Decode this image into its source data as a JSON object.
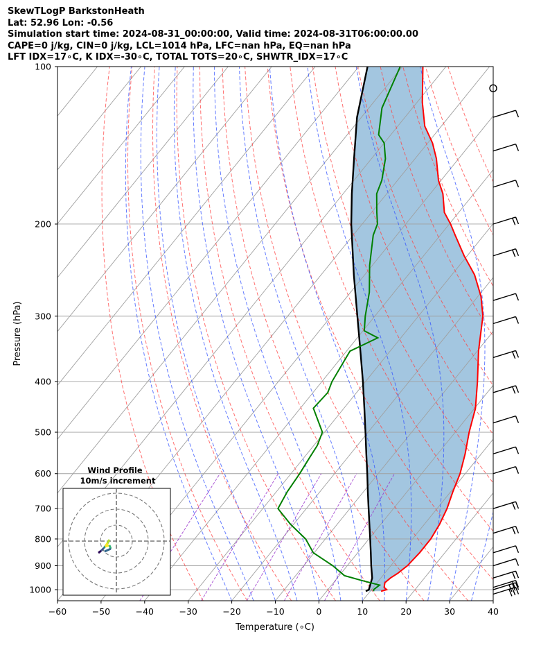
{
  "header": {
    "title": "SkewTLogP BarkstonHeath",
    "latlon": "Lat: 52.96   Lon: -0.56",
    "times": "Simulation start time: 2024-08-31_00:00:00, Valid time: 2024-08-31T06:00:00.00",
    "cape": "CAPE=0 j/kg, CIN=0 j/kg, LCL=1014 hPa, LFC=nan hPa, EQ=nan hPa",
    "indices": "LFT IDX=17∘C, K IDX=-30∘C, TOTAL TOTS=20∘C, SHWTR_IDX=17∘C"
  },
  "colors": {
    "temperature": "#ff0000",
    "dewpoint": "#008000",
    "parcel": "#000000",
    "cape_fill": "#a3c6e0",
    "dry_adiabat": "#ff4040",
    "moist_adiabat": "#3050ff",
    "mixing_ratio": "#9932cc",
    "isotherm": "#a0a0a0"
  },
  "chart_data": {
    "type": "skew-t",
    "xlabel": "Temperature (∘C)",
    "ylabel": "Pressure (hPa)",
    "xlim": [
      -60,
      40
    ],
    "ylim": [
      1050,
      100
    ],
    "x_ticks": [
      "−60",
      "−50",
      "−40",
      "−30",
      "−20",
      "−10",
      "0",
      "10",
      "20",
      "30",
      "40"
    ],
    "y_ticks": [
      "100",
      "200",
      "300",
      "400",
      "500",
      "600",
      "700",
      "800",
      "900",
      "1000"
    ],
    "grid": true,
    "series": [
      {
        "name": "temperature",
        "points": [
          [
            1007,
            12.5
          ],
          [
            1000,
            13.5
          ],
          [
            990,
            12.5
          ],
          [
            970,
            11.8
          ],
          [
            950,
            12.2
          ],
          [
            930,
            13
          ],
          [
            900,
            13.8
          ],
          [
            850,
            14.2
          ],
          [
            800,
            14.2
          ],
          [
            750,
            13.5
          ],
          [
            700,
            12.3
          ],
          [
            650,
            10.5
          ],
          [
            600,
            8.8
          ],
          [
            550,
            6.3
          ],
          [
            500,
            3.2
          ],
          [
            450,
            0.2
          ],
          [
            400,
            -4.3
          ],
          [
            350,
            -9.7
          ],
          [
            300,
            -15.2
          ],
          [
            275,
            -19.3
          ],
          [
            250,
            -24.8
          ],
          [
            230,
            -30.7
          ],
          [
            210,
            -36.6
          ],
          [
            200,
            -39.7
          ],
          [
            190,
            -43.3
          ],
          [
            175,
            -47.1
          ],
          [
            165,
            -50.6
          ],
          [
            150,
            -55.1
          ],
          [
            140,
            -58.9
          ],
          [
            130,
            -63.8
          ],
          [
            117,
            -68.8
          ],
          [
            100,
            -75.3
          ]
        ]
      },
      {
        "name": "dewpoint",
        "points": [
          [
            1007,
            10.8
          ],
          [
            1000,
            10.5
          ],
          [
            980,
            11
          ],
          [
            960,
            6
          ],
          [
            940,
            1.2
          ],
          [
            900,
            -3.3
          ],
          [
            850,
            -10.2
          ],
          [
            800,
            -14.5
          ],
          [
            750,
            -20.7
          ],
          [
            700,
            -26.5
          ],
          [
            650,
            -27.5
          ],
          [
            600,
            -28
          ],
          [
            560,
            -28.7
          ],
          [
            530,
            -29.2
          ],
          [
            500,
            -30.5
          ],
          [
            450,
            -37
          ],
          [
            420,
            -36.6
          ],
          [
            400,
            -37.7
          ],
          [
            350,
            -39.2
          ],
          [
            330,
            -35.3
          ],
          [
            320,
            -39.7
          ],
          [
            300,
            -42.2
          ],
          [
            270,
            -45.7
          ],
          [
            240,
            -50.6
          ],
          [
            210,
            -55.4
          ],
          [
            200,
            -56.5
          ],
          [
            190,
            -58.8
          ],
          [
            175,
            -62.3
          ],
          [
            165,
            -63.6
          ],
          [
            150,
            -66.8
          ],
          [
            140,
            -70
          ],
          [
            135,
            -72.8
          ],
          [
            120,
            -77
          ],
          [
            100,
            -80.5
          ]
        ]
      },
      {
        "name": "parcel",
        "points": [
          [
            1007,
            9
          ],
          [
            1000,
            9.4
          ],
          [
            950,
            8
          ],
          [
            900,
            5.5
          ],
          [
            850,
            3
          ],
          [
            800,
            0.3
          ],
          [
            750,
            -2.6
          ],
          [
            700,
            -5.7
          ],
          [
            650,
            -9
          ],
          [
            600,
            -12.5
          ],
          [
            550,
            -16.4
          ],
          [
            500,
            -20.6
          ],
          [
            450,
            -25.3
          ],
          [
            400,
            -30.6
          ],
          [
            350,
            -36.8
          ],
          [
            300,
            -44
          ],
          [
            250,
            -52.5
          ],
          [
            200,
            -62.5
          ],
          [
            175,
            -68
          ],
          [
            150,
            -74
          ],
          [
            125,
            -81
          ],
          [
            100,
            -88
          ]
        ]
      }
    ],
    "wind_barbs": [
      {
        "p": 1020,
        "barbs": 3
      },
      {
        "p": 1000,
        "barbs": 3
      },
      {
        "p": 990,
        "barbs": 2
      },
      {
        "p": 950,
        "barbs": 2
      },
      {
        "p": 900,
        "barbs": 1
      },
      {
        "p": 850,
        "barbs": 1
      },
      {
        "p": 780,
        "barbs": 2
      },
      {
        "p": 700,
        "barbs": 2
      },
      {
        "p": 600,
        "barbs": 1
      },
      {
        "p": 550,
        "barbs": 1
      },
      {
        "p": 480,
        "barbs": 1
      },
      {
        "p": 420,
        "barbs": 2
      },
      {
        "p": 360,
        "barbs": 2
      },
      {
        "p": 310,
        "barbs": 1
      },
      {
        "p": 280,
        "barbs": 1
      },
      {
        "p": 230,
        "barbs": 2
      },
      {
        "p": 200,
        "barbs": 2
      },
      {
        "p": 170,
        "barbs": 1
      },
      {
        "p": 145,
        "barbs": 1
      },
      {
        "p": 125,
        "barbs": 1
      },
      {
        "p": 110,
        "calm": true
      }
    ],
    "inset": {
      "title": "Wind Profile",
      "subtitle": "10m/s increment"
    }
  }
}
